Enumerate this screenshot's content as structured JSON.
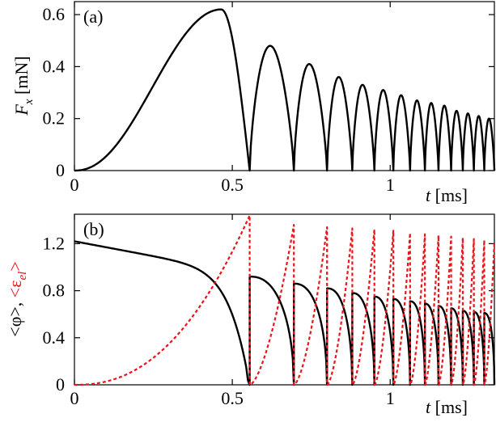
{
  "chart_data": [
    {
      "type": "line",
      "panel_label": "(a)",
      "ylabel": {
        "main": "F",
        "sub": "x",
        "unit": " [mN]"
      },
      "xlabel": {
        "main": "t",
        "unit": " [ms]"
      },
      "xlim": [
        0,
        1.33
      ],
      "ylim": [
        0,
        0.65
      ],
      "xticks": [
        0,
        0.5,
        1
      ],
      "xtick_labels": [
        "0",
        "0.5",
        "1"
      ],
      "yticks": [
        0,
        0.2,
        0.4,
        0.6
      ],
      "ytick_labels": [
        "0",
        "0.2",
        "0.4",
        "0.6"
      ],
      "series": [
        {
          "color": "#000000",
          "style": "solid",
          "first_pulse": {
            "start": 0.0,
            "peak_t": 0.465,
            "end": 0.555,
            "peak": 0.62
          },
          "pulses": [
            {
              "start": 0.555,
              "end": 0.695,
              "peak": 0.48
            },
            {
              "start": 0.695,
              "end": 0.8,
              "peak": 0.41
            },
            {
              "start": 0.8,
              "end": 0.88,
              "peak": 0.36
            },
            {
              "start": 0.88,
              "end": 0.95,
              "peak": 0.33
            },
            {
              "start": 0.95,
              "end": 1.01,
              "peak": 0.31
            },
            {
              "start": 1.01,
              "end": 1.063,
              "peak": 0.29
            },
            {
              "start": 1.063,
              "end": 1.11,
              "peak": 0.27
            },
            {
              "start": 1.11,
              "end": 1.153,
              "peak": 0.26
            },
            {
              "start": 1.153,
              "end": 1.193,
              "peak": 0.25
            },
            {
              "start": 1.193,
              "end": 1.23,
              "peak": 0.23
            },
            {
              "start": 1.23,
              "end": 1.265,
              "peak": 0.22
            },
            {
              "start": 1.265,
              "end": 1.298,
              "peak": 0.21
            },
            {
              "start": 1.298,
              "end": 1.33,
              "peak": 0.2
            }
          ]
        }
      ]
    },
    {
      "type": "line",
      "panel_label": "(b)",
      "ylabel": {
        "part1": "<φ>, ",
        "part2_main": "<ε",
        "part2_sub": "el",
        "part2_end": ">",
        "color2": "#e8151b"
      },
      "xlabel": {
        "main": "t",
        "unit": " [ms]"
      },
      "xlim": [
        0,
        1.33
      ],
      "ylim": [
        0,
        1.45
      ],
      "xticks": [
        0,
        0.5,
        1
      ],
      "xtick_labels": [
        "0",
        "0.5",
        "1"
      ],
      "yticks": [
        0,
        0.4,
        0.8,
        1.2
      ],
      "ytick_labels": [
        "0",
        "0.4",
        "0.8",
        "1.2"
      ],
      "series": [
        {
          "name_key": "phi",
          "color": "#000000",
          "style": "solid",
          "first_segment": {
            "start": 0.0,
            "end": 0.555,
            "y0": 1.22,
            "y_mid": 1.07
          },
          "segments": [
            {
              "start": 0.555,
              "end": 0.695,
              "y0": 0.92
            },
            {
              "start": 0.695,
              "end": 0.8,
              "y0": 0.86
            },
            {
              "start": 0.8,
              "end": 0.88,
              "y0": 0.82
            },
            {
              "start": 0.88,
              "end": 0.95,
              "y0": 0.78
            },
            {
              "start": 0.95,
              "end": 1.01,
              "y0": 0.75
            },
            {
              "start": 1.01,
              "end": 1.063,
              "y0": 0.73
            },
            {
              "start": 1.063,
              "end": 1.11,
              "y0": 0.71
            },
            {
              "start": 1.11,
              "end": 1.153,
              "y0": 0.69
            },
            {
              "start": 1.153,
              "end": 1.193,
              "y0": 0.67
            },
            {
              "start": 1.193,
              "end": 1.23,
              "y0": 0.65
            },
            {
              "start": 1.23,
              "end": 1.265,
              "y0": 0.63
            },
            {
              "start": 1.265,
              "end": 1.298,
              "y0": 0.62
            },
            {
              "start": 1.298,
              "end": 1.33,
              "y0": 0.61
            }
          ]
        },
        {
          "name_key": "eps",
          "color": "#e8151b",
          "style": "dashed",
          "first_segment": {
            "start": 0.0,
            "end": 0.555,
            "peak": 1.44
          },
          "segments": [
            {
              "start": 0.555,
              "end": 0.695,
              "peak": 1.36
            },
            {
              "start": 0.695,
              "end": 0.8,
              "peak": 1.34
            },
            {
              "start": 0.8,
              "end": 0.88,
              "peak": 1.33
            },
            {
              "start": 0.88,
              "end": 0.95,
              "peak": 1.32
            },
            {
              "start": 0.95,
              "end": 1.01,
              "peak": 1.31
            },
            {
              "start": 1.01,
              "end": 1.063,
              "peak": 1.29
            },
            {
              "start": 1.063,
              "end": 1.11,
              "peak": 1.28
            },
            {
              "start": 1.11,
              "end": 1.153,
              "peak": 1.27
            },
            {
              "start": 1.153,
              "end": 1.193,
              "peak": 1.26
            },
            {
              "start": 1.193,
              "end": 1.23,
              "peak": 1.25
            },
            {
              "start": 1.23,
              "end": 1.265,
              "peak": 1.24
            },
            {
              "start": 1.265,
              "end": 1.298,
              "peak": 1.23
            },
            {
              "start": 1.298,
              "end": 1.33,
              "peak": 1.22
            }
          ]
        }
      ]
    }
  ]
}
